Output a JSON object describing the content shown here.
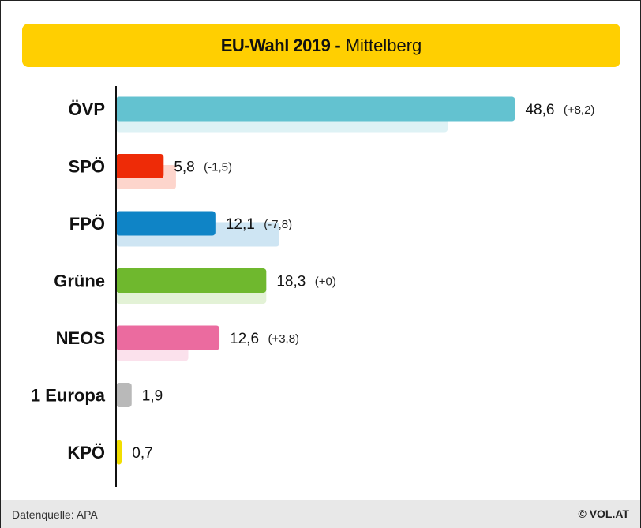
{
  "header": {
    "title": "EU-Wahl 2019",
    "separator": "-",
    "subtitle": "Mittelberg",
    "color": "#ffcf01"
  },
  "chart_data": {
    "type": "bar",
    "orientation": "horizontal",
    "categories": [
      "ÖVP",
      "SPÖ",
      "FPÖ",
      "Grüne",
      "NEOS",
      "1 Europa",
      "KPÖ"
    ],
    "series": [
      {
        "values": [
          48.6,
          5.8,
          12.1,
          18.3,
          12.6,
          1.9,
          0.7
        ]
      },
      {
        "values": [
          40.4,
          7.3,
          19.9,
          18.3,
          8.8,
          null,
          null
        ]
      }
    ],
    "value_labels": [
      "48,6",
      "5,8",
      "12,1",
      "18,3",
      "12,6",
      "1,9",
      "0,7"
    ],
    "change_labels": [
      "(+8,2)",
      "(-1,5)",
      "(-7,8)",
      "(+0)",
      "(+3,8)",
      "",
      ""
    ],
    "colors": [
      "#63c2d0",
      "#ee2b07",
      "#0f84c6",
      "#6fb82e",
      "#eb6b9f",
      "#b9b9b9",
      "#f2de00"
    ],
    "prev_colors": [
      "#def2f5",
      "#fdd5cc",
      "#cee5f3",
      "#e3f2d6",
      "#fbe1ec",
      "#eeeeee",
      "#fcf7c4"
    ],
    "xlim": [
      0,
      55
    ]
  },
  "footer": {
    "source": "Datenquelle: APA",
    "credit": "© VOL.AT"
  }
}
